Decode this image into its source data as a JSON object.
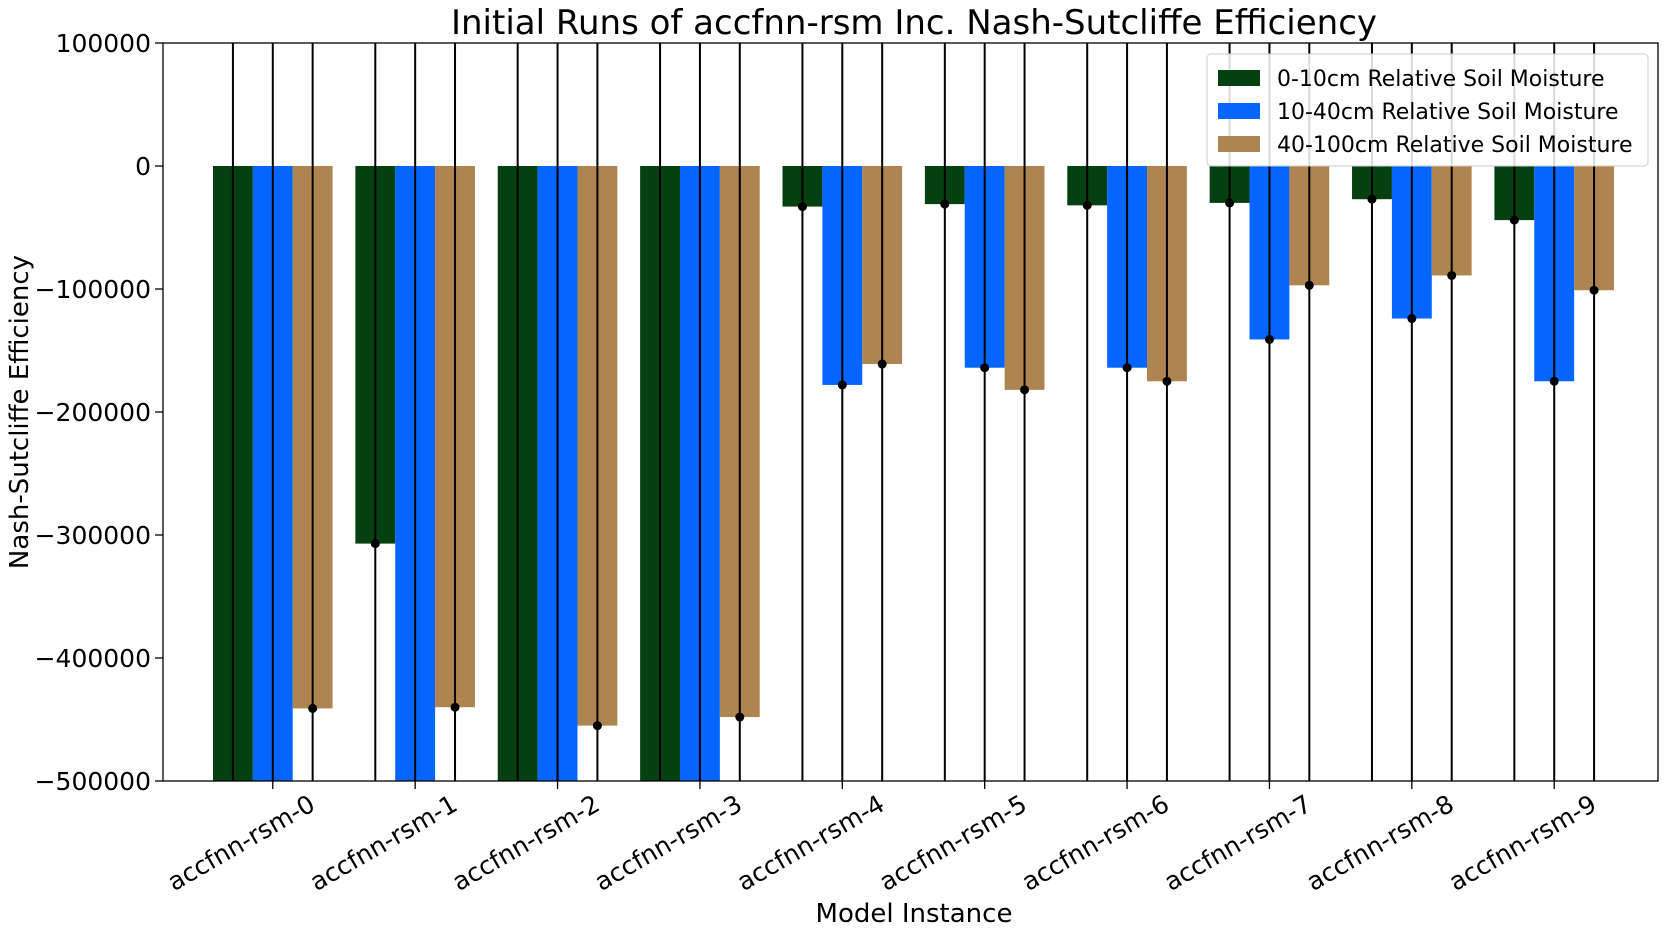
{
  "chart_data": {
    "type": "bar",
    "title": "Initial Runs of accfnn-rsm Inc. Nash-Sutcliffe Efficiency",
    "xlabel": "Model Instance",
    "ylabel": "Nash-Sutcliffe Efficiency",
    "ylim": [
      -500000,
      100000
    ],
    "yticks": [
      100000,
      0,
      -100000,
      -200000,
      -300000,
      -400000,
      -500000
    ],
    "ytick_labels": [
      "100000",
      "0",
      "−100000",
      "−200000",
      "−300000",
      "−400000",
      "−500000"
    ],
    "grid": false,
    "legend_position": "top-right",
    "error_bars": "vertical black error bars centered on each bar top; most extend beyond the visible axis range",
    "categories": [
      "accfnn-rsm-0",
      "accfnn-rsm-1",
      "accfnn-rsm-2",
      "accfnn-rsm-3",
      "accfnn-rsm-4",
      "accfnn-rsm-5",
      "accfnn-rsm-6",
      "accfnn-rsm-7",
      "accfnn-rsm-8",
      "accfnn-rsm-9"
    ],
    "series": [
      {
        "name": "0-10cm Relative Soil Moisture",
        "color": "#054010",
        "values": [
          -520000,
          -307000,
          -520000,
          -520000,
          -33000,
          -31000,
          -32000,
          -30000,
          -27000,
          -44000
        ]
      },
      {
        "name": "10-40cm Relative Soil Moisture",
        "color": "#0565ff",
        "values": [
          -520000,
          -520000,
          -520000,
          -520000,
          -178000,
          -164000,
          -164000,
          -141000,
          -124000,
          -175000
        ]
      },
      {
        "name": "40-100cm Relative Soil Moisture",
        "color": "#ae8550",
        "values": [
          -441000,
          -440000,
          -455000,
          -448000,
          -161000,
          -182000,
          -175000,
          -97000,
          -89000,
          -101000
        ]
      }
    ]
  }
}
